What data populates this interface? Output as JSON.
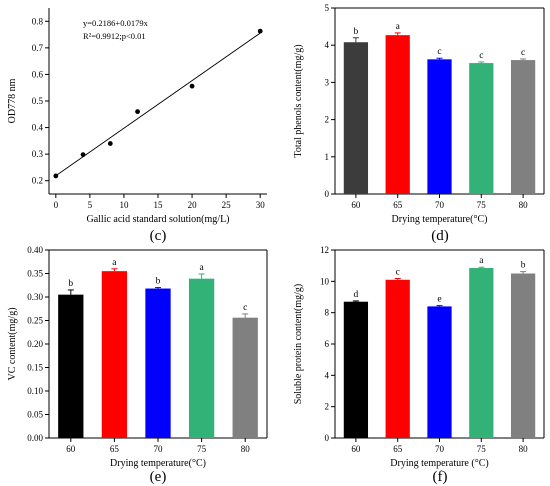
{
  "chart_data": [
    {
      "panel_label": "(c)",
      "type": "scatter",
      "x": [
        0,
        4,
        8,
        12,
        20,
        30
      ],
      "y": [
        0.218,
        0.298,
        0.34,
        0.46,
        0.556,
        0.763
      ],
      "fit": {
        "intercept": 0.2186,
        "slope": 0.0179
      },
      "annotations": [
        "y=0.2186+0.0179x",
        "R²=0.9912;p<0.01"
      ],
      "xlabel": "Gallic acid standard solution(mg/L)",
      "ylabel": "OD778 nm",
      "xlim": [
        -1,
        31
      ],
      "ylim": [
        0.15,
        0.85
      ],
      "xticks": [
        0,
        5,
        10,
        15,
        20,
        25,
        30
      ],
      "xtick_labels": [
        "0",
        "5",
        "10",
        "15",
        "20",
        "25",
        "30"
      ],
      "yticks": [
        0.2,
        0.3,
        0.4,
        0.5,
        0.6,
        0.7,
        0.8
      ],
      "ytick_labels": [
        "0.2",
        "0.3",
        "0.4",
        "0.5",
        "0.6",
        "0.7",
        "0.8"
      ]
    },
    {
      "panel_label": "(d)",
      "type": "bar",
      "categories": [
        "60",
        "65",
        "70",
        "75",
        "80"
      ],
      "values": [
        4.08,
        4.27,
        3.62,
        3.52,
        3.6
      ],
      "errors": [
        0.12,
        0.06,
        0.03,
        0.03,
        0.03
      ],
      "letters": [
        "b",
        "a",
        "c",
        "c",
        "c"
      ],
      "colors": [
        "#3c3c3c",
        "#ff0000",
        "#0000ff",
        "#33b278",
        "#808080"
      ],
      "xlabel": "Drying temperature(°C)",
      "ylabel": "Total phenols content(mg/g)",
      "ylim": [
        0,
        5
      ],
      "yticks": [
        0,
        1,
        2,
        3,
        4,
        5
      ],
      "ytick_labels": [
        "0",
        "1",
        "2",
        "3",
        "4",
        "5"
      ]
    },
    {
      "panel_label": "(e)",
      "type": "bar",
      "categories": [
        "60",
        "65",
        "70",
        "75",
        "80"
      ],
      "values": [
        0.305,
        0.355,
        0.318,
        0.339,
        0.256
      ],
      "errors": [
        0.01,
        0.005,
        0.002,
        0.01,
        0.008
      ],
      "letters": [
        "b",
        "a",
        "b",
        "a",
        "c"
      ],
      "colors": [
        "#000000",
        "#ff0000",
        "#0000ff",
        "#33b278",
        "#808080"
      ],
      "xlabel": "Drying temperature(°C)",
      "ylabel": "VC content(mg/g)",
      "ylim": [
        0,
        0.4
      ],
      "yticks": [
        0,
        0.05,
        0.1,
        0.15,
        0.2,
        0.25,
        0.3,
        0.35,
        0.4
      ],
      "ytick_labels": [
        "0.00",
        "0.05",
        "0.10",
        "0.15",
        "0.20",
        "0.25",
        "0.30",
        "0.35",
        "0.40"
      ]
    },
    {
      "panel_label": "(f)",
      "type": "bar",
      "categories": [
        "60",
        "65",
        "70",
        "75",
        "80"
      ],
      "values": [
        8.7,
        10.1,
        8.4,
        10.85,
        10.5
      ],
      "errors": [
        0.05,
        0.08,
        0.05,
        0.05,
        0.12
      ],
      "letters": [
        "d",
        "c",
        "e",
        "a",
        "b"
      ],
      "colors": [
        "#000000",
        "#ff0000",
        "#0000ff",
        "#33b278",
        "#808080"
      ],
      "xlabel": "Drying temperature (°C)",
      "ylabel": "Soluble protein content(mg/g)",
      "ylim": [
        0,
        12
      ],
      "yticks": [
        0,
        2,
        4,
        6,
        8,
        10,
        12
      ],
      "ytick_labels": [
        "0",
        "2",
        "4",
        "6",
        "8",
        "10",
        "12"
      ]
    }
  ]
}
